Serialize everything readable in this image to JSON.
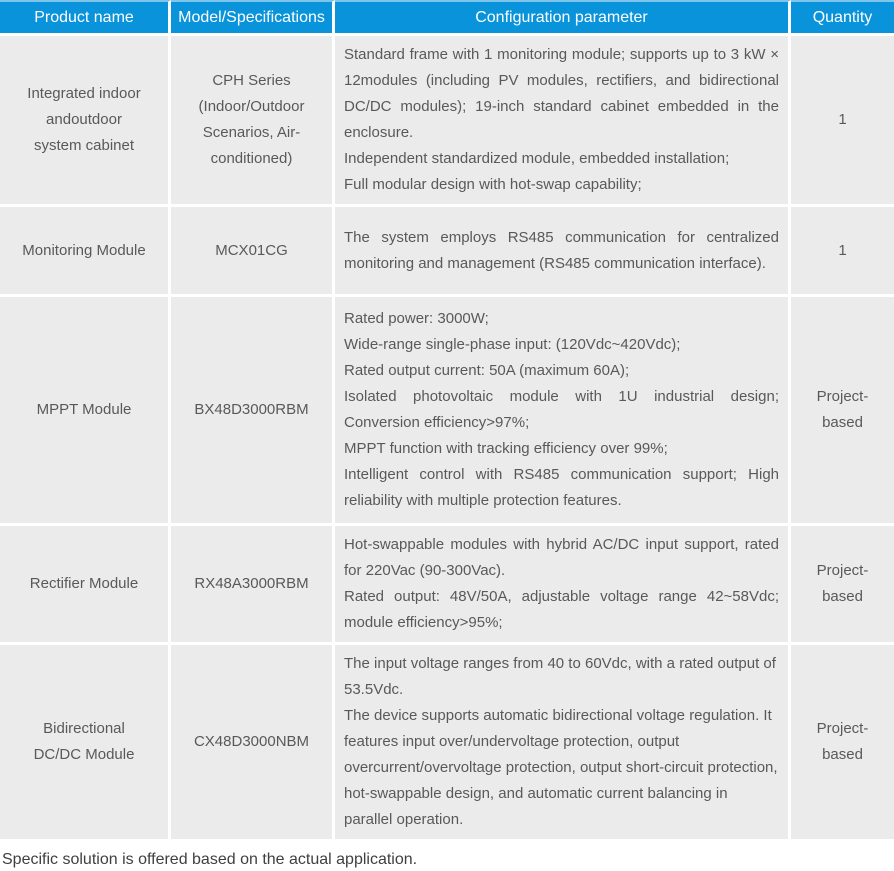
{
  "colors": {
    "header_bg": "#0993db",
    "header_top_strip": "#7ec5ec",
    "cell_bg": "#ebebeb",
    "body_text": "#58595b",
    "header_text": "#ffffff"
  },
  "table": {
    "headers": [
      "Product name",
      "Model/Specifications",
      "Configuration parameter",
      "Quantity"
    ],
    "rows": [
      {
        "product": "Integrated indoor andoutdoor system cabinet",
        "model": "CPH Series (Indoor/Outdoor Scenarios, Air-conditioned)",
        "config": [
          "Standard frame with 1 monitoring module; supports up to 3 kW × 12modules (including PV modules, rectifiers, and bidirectional DC/DC modules); 19-inch standard cabinet embedded in the enclosure.",
          "Independent standardized module, embedded installation;",
          "Full modular design with hot-swap capability;"
        ],
        "quantity": "1"
      },
      {
        "product": "Monitoring Module",
        "model": "MCX01CG",
        "config": [
          "The system employs RS485 communication for centralized monitoring and management (RS485 communication interface)."
        ],
        "quantity": "1"
      },
      {
        "product": "MPPT Module",
        "model": "BX48D3000RBM",
        "config": [
          "Rated power: 3000W;",
          "Wide-range single-phase input: (120Vdc~420Vdc);",
          "Rated output current: 50A (maximum 60A);",
          "Isolated photovoltaic module with 1U industrial design; Conversion efficiency>97%;",
          "MPPT function with tracking efficiency over 99%;",
          "Intelligent control with RS485 communication support; High reliability with multiple protection features."
        ],
        "quantity": "Project-based"
      },
      {
        "product": "Rectifier Module",
        "model": "RX48A3000RBM",
        "config": [
          "Hot-swappable modules with hybrid AC/DC input support, rated for 220Vac (90-300Vac).",
          "Rated output: 48V/50A, adjustable voltage range 42~58Vdc; module efficiency>95%;"
        ],
        "quantity": "Project-based"
      },
      {
        "product": "Bidirectional DC/DC Module",
        "model": "CX48D3000NBM",
        "config": [
          "The input voltage ranges from 40 to 60Vdc, with a rated output of 53.5Vdc.",
          "The device supports automatic bidirectional voltage regulation. It features input over/undervoltage protection, output overcurrent/overvoltage protection, output short-circuit protection, hot-swappable design, and automatic current balancing in parallel operation."
        ],
        "quantity": "Project-based"
      }
    ]
  },
  "footer": {
    "note": "Specific solution is offered based on the actual application."
  }
}
